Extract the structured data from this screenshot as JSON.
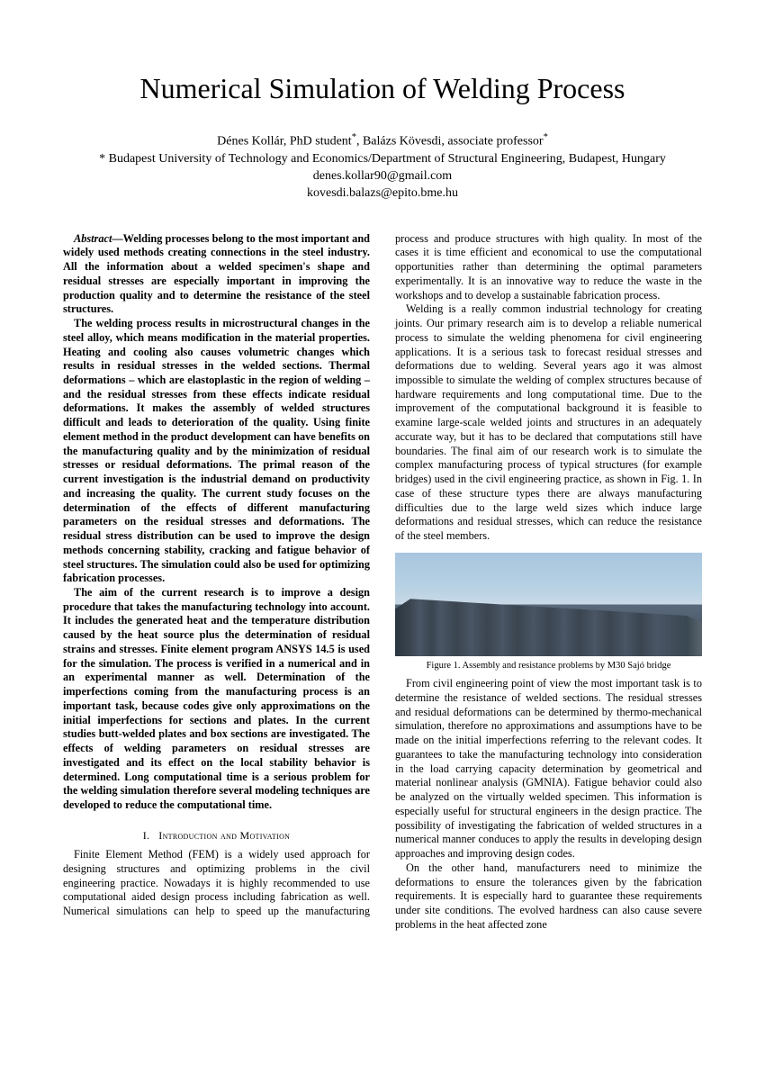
{
  "title": "Numerical Simulation of Welding Process",
  "authors": "Dénes Kollár, PhD student*, Balázs Kövesdi, associate professor*",
  "affiliation": "* Budapest University of Technology and Economics/Department of Structural Engineering, Budapest, Hungary",
  "email1": "denes.kollar90@gmail.com",
  "email2": "kovesdi.balazs@epito.bme.hu",
  "abstract": {
    "label": "Abstract—",
    "p1_first": "Welding processes belong to the most important and widely used methods creating connections in the steel industry. All the information about a welded specimen's shape and residual stresses are especially important in improving the production quality and to determine the resistance of the steel structures.",
    "p2": "The welding process results in microstructural changes in the steel alloy, which means modification in the material properties. Heating and cooling also causes volumetric changes which results in residual stresses in the welded sections. Thermal deformations – which are elastoplastic in the region of welding – and the residual stresses from these effects indicate residual deformations. It makes the assembly of welded structures difficult and leads to deterioration of the quality. Using finite element method in the product development can have benefits on the manufacturing quality and by the minimization of residual stresses or residual deformations. The primal reason of the current investigation is the industrial demand on productivity and increasing the quality. The current study focuses on the determination of the effects of different manufacturing parameters on the residual stresses and deformations. The residual stress distribution can be used to improve the design methods concerning stability, cracking and fatigue behavior of steel structures. The simulation could also be used for optimizing fabrication processes.",
    "p3": "The aim of the current research is to improve a design procedure that takes the manufacturing technology into account. It includes the generated heat and the temperature distribution caused by the heat source plus the determination of residual strains and stresses. Finite element program ANSYS 14.5 is used for the simulation. The process is verified in a numerical and in an experimental manner as well. Determination of the imperfections coming from the manufacturing process is an important task, because codes give only approximations on the initial imperfections for sections and plates. In the current studies butt-welded plates and box sections are investigated. The effects of welding parameters on residual stresses are investigated and its effect on the local stability behavior is determined. Long computational time is a serious problem for the welding simulation therefore several modeling techniques are developed to reduce the computational time."
  },
  "section1": {
    "number": "I.",
    "heading": "Introduction and Motivation",
    "p1": "Finite Element Method (FEM) is a widely used approach for designing structures and optimizing problems in the civil engineering practice. Nowadays it is highly recommended to use computational aided design process including fabrication as well. Numerical simulations can help to speed up the manufacturing process and produce structures with high quality. In most of the cases it is time efficient and economical to use the computational opportunities rather than determining the optimal parameters experimentally. It is an innovative way to reduce the waste in the workshops and to develop a sustainable fabrication process.",
    "p2": "Welding is a really common industrial technology for creating joints. Our primary research aim is to develop a reliable numerical process to simulate the welding phenomena for civil engineering applications. It is a serious task to forecast residual stresses and deformations due to welding. Several years ago it was almost impossible to simulate the welding of complex structures because of hardware requirements and long computational time. Due to the improvement of the computational background it is feasible to examine large-scale welded joints and structures in an adequately accurate way, but it has to be declared that computations still have boundaries. The final aim of our research work is to simulate the complex manufacturing process of typical structures (for example bridges) used in the civil engineering practice, as shown in Fig. 1. In case of these structure types there are always manufacturing difficulties due to the large weld sizes which induce large deformations and residual stresses, which can reduce the resistance of the steel members."
  },
  "figure1": {
    "caption": "Figure 1.   Assembly and resistance problems by M30 Sajó bridge"
  },
  "section1_cont": {
    "p3": "From civil engineering point of view the most important task is to determine the resistance of welded sections. The residual stresses and residual deformations can be determined by thermo-mechanical simulation, therefore no approximations and assumptions have to be made on the initial imperfections referring to the relevant codes. It guarantees to take the manufacturing technology into consideration in the load carrying capacity determination by geometrical and material nonlinear analysis (GMNIA). Fatigue behavior could also be analyzed on the virtually welded specimen. This information is especially useful for structural engineers in the design practice. The possibility of investigating the fabrication of welded structures in a numerical manner conduces to apply the results in developing design approaches and improving design codes.",
    "p4": "On the other hand, manufacturers need to minimize the deformations to ensure the tolerances given by the fabrication requirements. It is especially hard to guarantee these requirements under site conditions. The evolved hardness can also cause severe problems in the heat affected zone"
  }
}
